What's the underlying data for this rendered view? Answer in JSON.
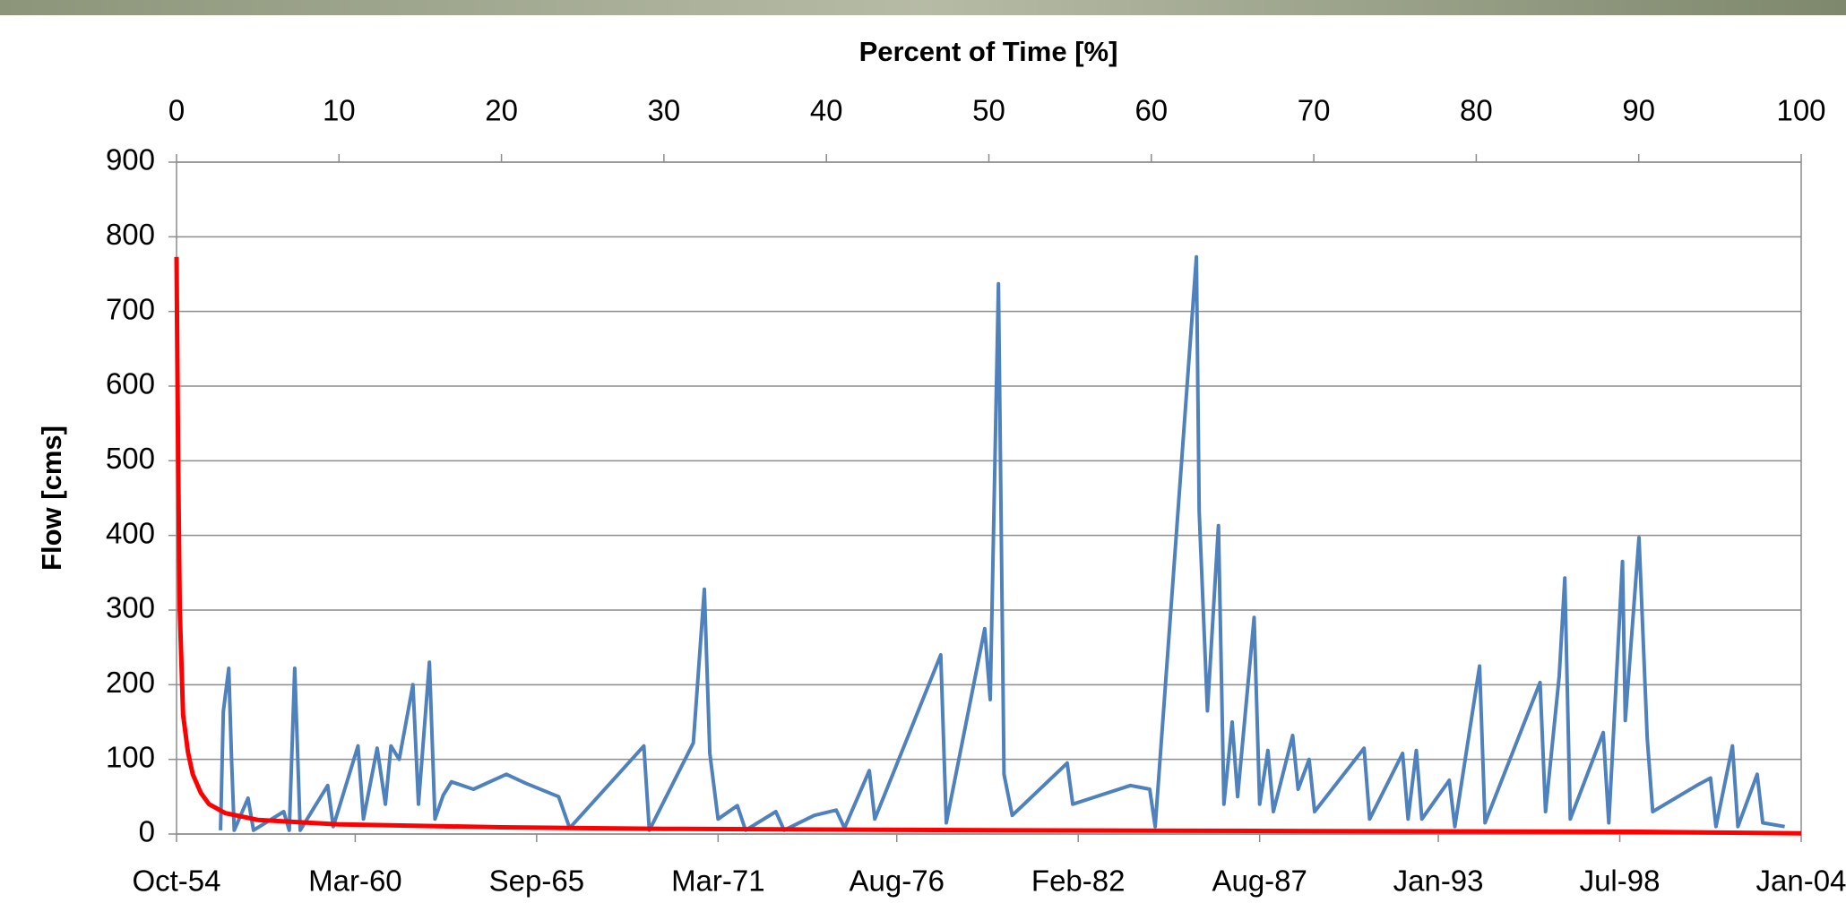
{
  "chart_data": {
    "type": "line",
    "x2label": "Percent of Time [%]",
    "ylabel": "Flow [cms]",
    "xlim": [
      "Oct-54",
      "Jan-04"
    ],
    "xticks": [
      "Oct-54",
      "Mar-60",
      "Sep-65",
      "Mar-71",
      "Aug-76",
      "Feb-82",
      "Aug-87",
      "Jan-93",
      "Jul-98",
      "Jan-04"
    ],
    "x2lim": [
      0,
      100
    ],
    "x2ticks": [
      0,
      10,
      20,
      30,
      40,
      50,
      60,
      70,
      80,
      90,
      100
    ],
    "ylim": [
      0,
      900
    ],
    "yticks": [
      0,
      100,
      200,
      300,
      400,
      500,
      600,
      700,
      800,
      900
    ],
    "grid": true,
    "series": [
      {
        "color": "#4f81bd",
        "x": [
          "Feb-56",
          "Mar-56",
          "May-56",
          "Jun-56",
          "Jul-56",
          "Dec-56",
          "Feb-57",
          "Jan-58",
          "Mar-58",
          "May-58",
          "Jul-58",
          "May-59",
          "Jul-59",
          "Apr-60",
          "Jun-60",
          "Nov-60",
          "Feb-61",
          "Apr-61",
          "Jul-61",
          "Dec-61",
          "Feb-62",
          "Jun-62",
          "Aug-62",
          "Nov-62",
          "Feb-63",
          "Oct-63",
          "Oct-64",
          "May-65",
          "May-66",
          "Sep-66",
          "Dec-68",
          "Feb-69",
          "Jun-70",
          "Oct-70",
          "Dec-70",
          "Mar-71",
          "Oct-71",
          "Jan-72",
          "Dec-72",
          "Mar-73",
          "Feb-74",
          "Oct-74",
          "Jan-75",
          "Oct-75",
          "Dec-75",
          "Dec-77",
          "Feb-78",
          "Apr-79",
          "Jun-79",
          "Sep-79",
          "Nov-79",
          "Feb-80",
          "Oct-81",
          "Dec-81",
          "Sep-83",
          "Apr-84",
          "Jun-84",
          "Sep-85",
          "Oct-85",
          "Jan-86",
          "May-86",
          "Jul-86",
          "Oct-86",
          "Dec-86",
          "Jun-87",
          "Aug-87",
          "Nov-87",
          "Jan-88",
          "Aug-88",
          "Oct-88",
          "Feb-89",
          "Apr-89",
          "Oct-90",
          "Dec-90",
          "Dec-91",
          "Feb-92",
          "May-92",
          "Jul-92",
          "May-93",
          "Jul-93",
          "Apr-94",
          "Jun-94",
          "Feb-96",
          "Apr-96",
          "Sep-96",
          "Nov-96",
          "Jan-97",
          "Jan-98",
          "Mar-98",
          "Aug-98",
          "Sep-98",
          "Feb-99",
          "May-99",
          "Jul-99",
          "Nov-00",
          "Apr-01",
          "Jun-01",
          "Dec-01",
          "Feb-02",
          "Sep-02",
          "Nov-02",
          "Jul-03"
        ],
        "values": [
          5,
          164,
          222,
          100,
          5,
          48,
          5,
          30,
          5,
          222,
          5,
          65,
          10,
          118,
          20,
          115,
          40,
          118,
          100,
          200,
          40,
          230,
          20,
          52,
          70,
          60,
          80,
          68,
          50,
          8,
          118,
          5,
          122,
          328,
          108,
          20,
          38,
          5,
          30,
          5,
          25,
          32,
          8,
          85,
          20,
          240,
          15,
          275,
          180,
          737,
          80,
          25,
          95,
          40,
          65,
          60,
          10,
          773,
          432,
          165,
          413,
          40,
          150,
          50,
          290,
          40,
          112,
          30,
          132,
          60,
          100,
          30,
          115,
          20,
          108,
          20,
          112,
          20,
          72,
          10,
          225,
          15,
          203,
          30,
          212,
          343,
          20,
          136,
          15,
          365,
          152,
          397,
          128,
          30,
          65,
          75,
          10,
          118,
          10,
          80,
          15,
          10
        ]
      },
      {
        "color": "#ff0000",
        "axis": "x2",
        "x": [
          0,
          0.1,
          0.2,
          0.4,
          0.7,
          1,
          1.5,
          2,
          3,
          5,
          10,
          20,
          30,
          50,
          70,
          90,
          100
        ],
        "values": [
          773,
          500,
          300,
          160,
          110,
          80,
          55,
          40,
          28,
          19,
          13,
          9,
          7,
          5,
          4,
          3,
          1
        ]
      }
    ]
  }
}
